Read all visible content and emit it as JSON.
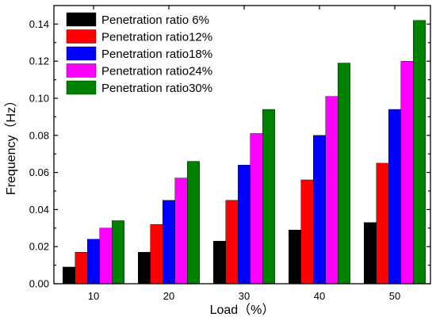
{
  "chart_data": {
    "type": "bar",
    "xlabel": "Load（%）",
    "ylabel": "Frequency（Hz）",
    "categories": [
      "10",
      "20",
      "30",
      "40",
      "50"
    ],
    "ylim": [
      0,
      0.15
    ],
    "yticks": [
      "0.00",
      "0.02",
      "0.04",
      "0.06",
      "0.08",
      "0.10",
      "0.12",
      "0.14"
    ],
    "yticks_values": [
      0,
      0.02,
      0.04,
      0.06,
      0.08,
      0.1,
      0.12,
      0.14
    ],
    "grid": false,
    "legend_position": "top-left",
    "series": [
      {
        "name": "Penetration ratio 6%",
        "color": "#000000",
        "values": [
          0.009,
          0.017,
          0.023,
          0.029,
          0.033
        ]
      },
      {
        "name": "Penetration ratio12%",
        "color": "#ff0000",
        "values": [
          0.017,
          0.032,
          0.045,
          0.056,
          0.065
        ]
      },
      {
        "name": "Penetration ratio18%",
        "color": "#0000ff",
        "values": [
          0.024,
          0.045,
          0.064,
          0.08,
          0.094
        ]
      },
      {
        "name": "Penetration ratio24%",
        "color": "#ff00ff",
        "values": [
          0.03,
          0.057,
          0.081,
          0.101,
          0.12
        ]
      },
      {
        "name": "Penetration ratio30%",
        "color": "#008000",
        "values": [
          0.034,
          0.066,
          0.094,
          0.119,
          0.142
        ]
      }
    ]
  }
}
